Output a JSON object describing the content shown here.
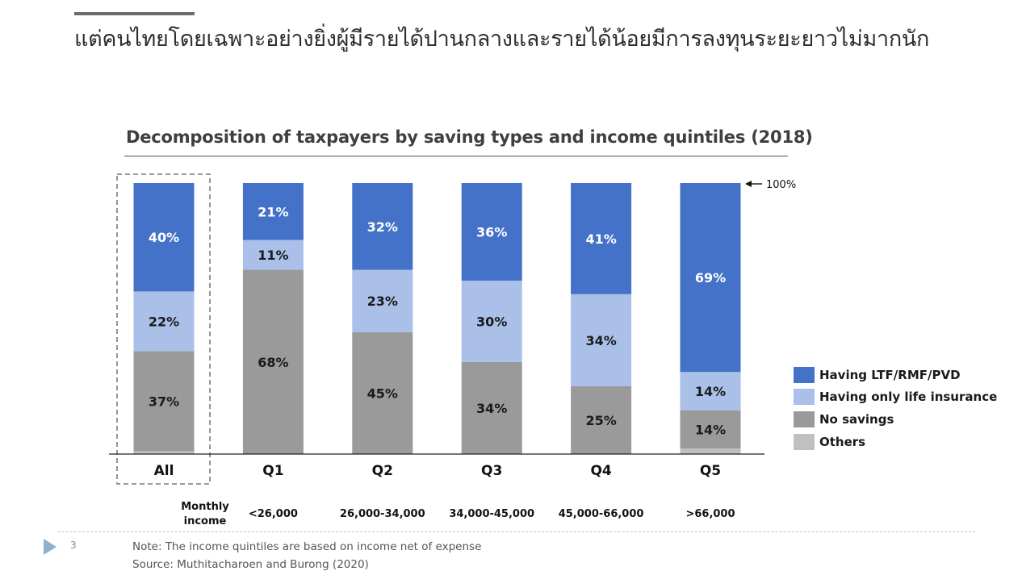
{
  "header": {
    "title": "แต่คนไทยโดยเฉพาะอย่างยิ่งผู้มีรายได้ปานกลางและรายได้น้อยมีการลงทุนระยะยาวไม่มากนัก"
  },
  "chart_data": {
    "type": "bar",
    "stacked": true,
    "title": "Decomposition of taxpayers by saving types and income quintiles (2018)",
    "categories": [
      "All",
      "Q1",
      "Q2",
      "Q3",
      "Q4",
      "Q5"
    ],
    "highlighted_category": "All",
    "income_row_label": "Monthly income",
    "income_ranges": [
      "",
      "<26,000",
      "26,000-34,000",
      "34,000-45,000",
      "45,000-66,000",
      ">66,000"
    ],
    "total_marker": "100%",
    "ylim": [
      0,
      100
    ],
    "series": [
      {
        "name": "Others",
        "color": "#c0c0c0",
        "values": [
          1,
          0,
          0,
          0,
          0,
          2
        ],
        "labels": [
          "",
          "",
          "",
          "",
          "",
          ""
        ]
      },
      {
        "name": "No savings",
        "color": "#9a9a9a",
        "values": [
          37,
          68,
          45,
          34,
          25,
          14
        ],
        "labels": [
          "37%",
          "68%",
          "45%",
          "34%",
          "25%",
          "14%"
        ]
      },
      {
        "name": "Having only life insurance",
        "color": "#aac0e9",
        "values": [
          22,
          11,
          23,
          30,
          34,
          14
        ],
        "labels": [
          "22%",
          "11%",
          "23%",
          "30%",
          "34%",
          "14%"
        ]
      },
      {
        "name": "Having LTF/RMF/PVD",
        "color": "#4472c8",
        "values": [
          40,
          21,
          32,
          36,
          41,
          69
        ],
        "labels": [
          "40%",
          "21%",
          "32%",
          "36%",
          "41%",
          "69%"
        ]
      }
    ],
    "legend_order": [
      "Having LTF/RMF/PVD",
      "Having only life insurance",
      "No savings",
      "Others"
    ],
    "legend_position": "right"
  },
  "footer": {
    "page_number": "3",
    "note": "Note: The income quintiles are based on income net of expense",
    "source": "Source: Muthitacharoen and Burong (2020)"
  }
}
